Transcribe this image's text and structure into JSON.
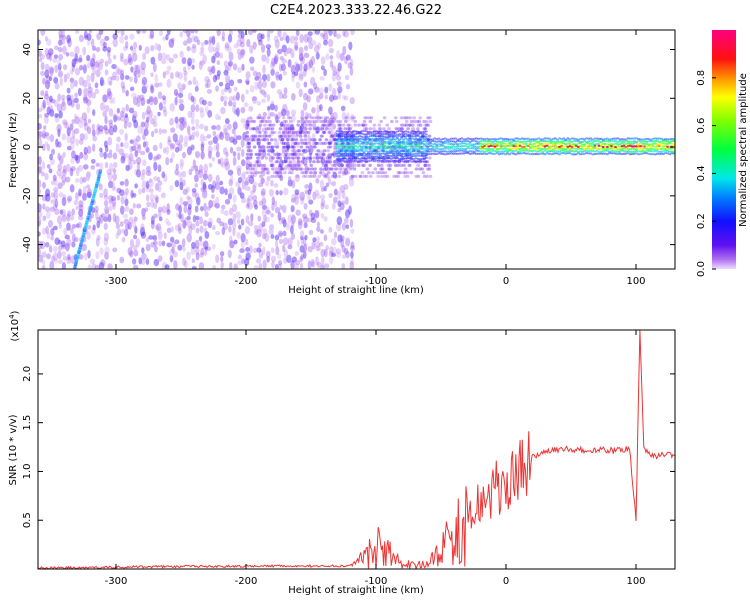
{
  "title": "C2E4.2023.333.22.46.G22",
  "colorbar": {
    "label": "Normalized spectral amplitude",
    "ticks": [
      "0.0",
      "0.2",
      "0.4",
      "0.6",
      "0.8"
    ]
  },
  "chart_data": [
    {
      "type": "heatmap",
      "xlabel": "Height of straight line (km)",
      "ylabel": "Frequency (Hz)",
      "xlim": [
        -360,
        130
      ],
      "ylim": [
        -50,
        48
      ],
      "xticks": [
        -300,
        -200,
        -100,
        0,
        100
      ],
      "xtick_labels": [
        "-300",
        "-200",
        "-100",
        "0",
        "100"
      ],
      "yticks": [
        -40,
        -20,
        0,
        20,
        40
      ],
      "ytick_labels": [
        "-40",
        "-20",
        "0",
        "20",
        "40"
      ],
      "colormap": "rainbow (violet = 0 to magenta = 1)",
      "color_range": [
        0,
        1
      ],
      "features": {
        "noise_region_x": [
          -360,
          -120
        ],
        "ridge_frequency_hz": 0,
        "ridge_x": [
          -130,
          130
        ],
        "diagonal_streak": {
          "x": [
            -332,
            -312
          ],
          "y": [
            -50,
            -10
          ]
        }
      }
    },
    {
      "type": "line",
      "xlabel": "Height of straight line (km)",
      "ylabel": "SNR (10 * v/v)",
      "multiplier_label": "(x10",
      "multiplier_exponent": "4",
      "multiplier_close": ")",
      "xlim": [
        -360,
        130
      ],
      "ylim": [
        0,
        24500
      ],
      "xticks": [
        -300,
        -200,
        -100,
        0,
        100
      ],
      "xtick_labels": [
        "-300",
        "-200",
        "-100",
        "0",
        "100"
      ],
      "yticks": [
        5000,
        10000,
        15000,
        20000
      ],
      "ytick_labels": [
        "0.5",
        "1.0",
        "1.5",
        "2.0"
      ],
      "color": "#ee3333",
      "series": [
        {
          "x": [
            -360,
            -300,
            -200,
            -120,
            -110,
            -100,
            -90,
            -80,
            -70,
            -60,
            -50,
            -40,
            -30,
            -20,
            -10,
            0,
            10,
            20,
            30,
            40,
            50,
            60,
            70,
            80,
            90,
            95,
            100,
            103,
            106,
            110,
            130
          ],
          "y": [
            100,
            200,
            300,
            300,
            1000,
            2200,
            1500,
            700,
            400,
            500,
            1500,
            3500,
            5500,
            7000,
            8000,
            9000,
            9800,
            11500,
            12000,
            12200,
            12300,
            12200,
            12200,
            12100,
            12200,
            12400,
            5000,
            24500,
            12500,
            11700,
            11600
          ]
        }
      ]
    }
  ]
}
